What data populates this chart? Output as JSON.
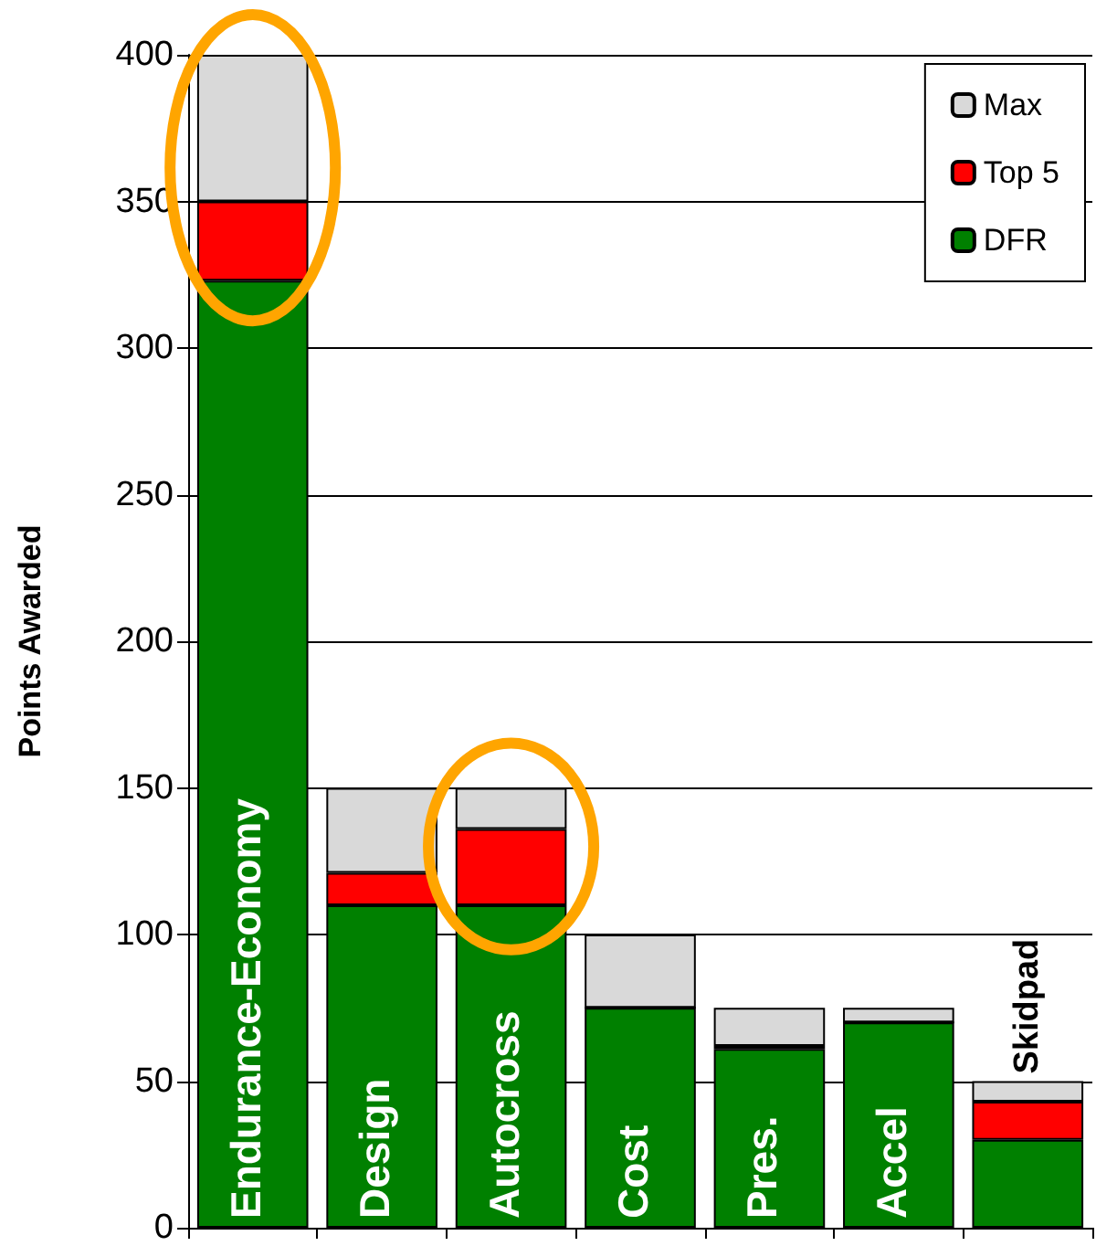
{
  "chart_data": {
    "type": "bar",
    "stacked": true,
    "ylabel": "Points Awarded",
    "categories": [
      "Endurance-Economy",
      "Design",
      "Autocross",
      "Cost",
      "Pres.",
      "Accel",
      "Skidpad"
    ],
    "series": [
      {
        "name": "DFR",
        "color": "#008000",
        "values": [
          323,
          110,
          110,
          75,
          61,
          70,
          30
        ]
      },
      {
        "name": "Top 5",
        "color": "#ff0000",
        "values": [
          27,
          11,
          26,
          0,
          1,
          0,
          13
        ]
      },
      {
        "name": "Max",
        "color": "#d9d9d9",
        "values": [
          50,
          29,
          14,
          25,
          13,
          5,
          7
        ]
      }
    ],
    "ylim": [
      0,
      400
    ],
    "yticks": [
      0,
      50,
      100,
      150,
      200,
      250,
      300,
      350,
      400
    ],
    "grid": "y",
    "legend": "top right"
  }
}
